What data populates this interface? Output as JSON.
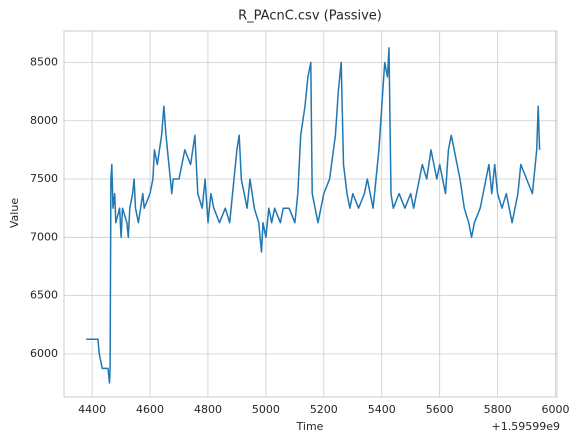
{
  "chart_data": {
    "type": "line",
    "title": "R_PAcnC.csv (Passive)",
    "x_label": "Time",
    "y_label": "Value",
    "x_offset_label": "+1.59599e9",
    "x": [
      4380,
      4420,
      4425,
      4435,
      4455,
      4460,
      4462,
      4465,
      4468,
      4472,
      4478,
      4482,
      4495,
      4500,
      4505,
      4520,
      4525,
      4530,
      4540,
      4545,
      4550,
      4560,
      4575,
      4580,
      4600,
      4610,
      4615,
      4625,
      4640,
      4648,
      4655,
      4665,
      4675,
      4680,
      4700,
      4710,
      4720,
      4740,
      4755,
      4765,
      4780,
      4790,
      4800,
      4810,
      4820,
      4840,
      4860,
      4875,
      4890,
      4900,
      4908,
      4915,
      4925,
      4935,
      4945,
      4960,
      4975,
      4985,
      4990,
      5000,
      5010,
      5020,
      5030,
      5050,
      5060,
      5080,
      5100,
      5110,
      5120,
      5135,
      5145,
      5155,
      5160,
      5170,
      5180,
      5190,
      5200,
      5220,
      5240,
      5250,
      5260,
      5268,
      5280,
      5290,
      5300,
      5320,
      5340,
      5350,
      5360,
      5370,
      5380,
      5390,
      5400,
      5410,
      5420,
      5425,
      5432,
      5440,
      5460,
      5480,
      5500,
      5510,
      5520,
      5540,
      5555,
      5570,
      5580,
      5590,
      5600,
      5620,
      5630,
      5640,
      5660,
      5670,
      5685,
      5700,
      5710,
      5720,
      5740,
      5750,
      5760,
      5770,
      5780,
      5790,
      5800,
      5815,
      5830,
      5840,
      5850,
      5860,
      5870,
      5880,
      5900,
      5920,
      5935,
      5940,
      5945
    ],
    "series": [
      {
        "name": "Value",
        "color": "#1f77b4",
        "values": [
          6125,
          6125,
          6000,
          5875,
          5875,
          5750,
          5875,
          7500,
          7625,
          7250,
          7375,
          7125,
          7250,
          7000,
          7250,
          7125,
          7000,
          7250,
          7375,
          7500,
          7250,
          7125,
          7375,
          7250,
          7375,
          7500,
          7750,
          7625,
          7875,
          8125,
          7875,
          7625,
          7375,
          7500,
          7500,
          7625,
          7750,
          7625,
          7875,
          7375,
          7250,
          7500,
          7125,
          7375,
          7250,
          7125,
          7250,
          7125,
          7500,
          7750,
          7875,
          7500,
          7375,
          7250,
          7500,
          7250,
          7125,
          6875,
          7125,
          7000,
          7250,
          7125,
          7250,
          7125,
          7250,
          7250,
          7125,
          7375,
          7875,
          8125,
          8375,
          8500,
          7375,
          7250,
          7125,
          7250,
          7375,
          7500,
          7875,
          8250,
          8500,
          7625,
          7375,
          7250,
          7375,
          7250,
          7375,
          7500,
          7375,
          7250,
          7500,
          7750,
          8125,
          8500,
          8375,
          8625,
          7375,
          7250,
          7375,
          7250,
          7375,
          7250,
          7375,
          7625,
          7500,
          7750,
          7625,
          7500,
          7625,
          7375,
          7750,
          7875,
          7625,
          7500,
          7250,
          7125,
          7000,
          7125,
          7250,
          7375,
          7500,
          7625,
          7375,
          7625,
          7375,
          7250,
          7375,
          7250,
          7125,
          7250,
          7375,
          7625,
          7500,
          7375,
          7750,
          8125,
          7750
        ]
      }
    ],
    "xlim": [
      4303,
      6005
    ],
    "ylim": [
      5630,
      8770
    ],
    "xticks": [
      4400,
      4600,
      4800,
      5000,
      5200,
      5400,
      5600,
      5800,
      6000
    ],
    "yticks": [
      6000,
      6500,
      7000,
      7500,
      8000,
      8500
    ],
    "grid": true
  }
}
